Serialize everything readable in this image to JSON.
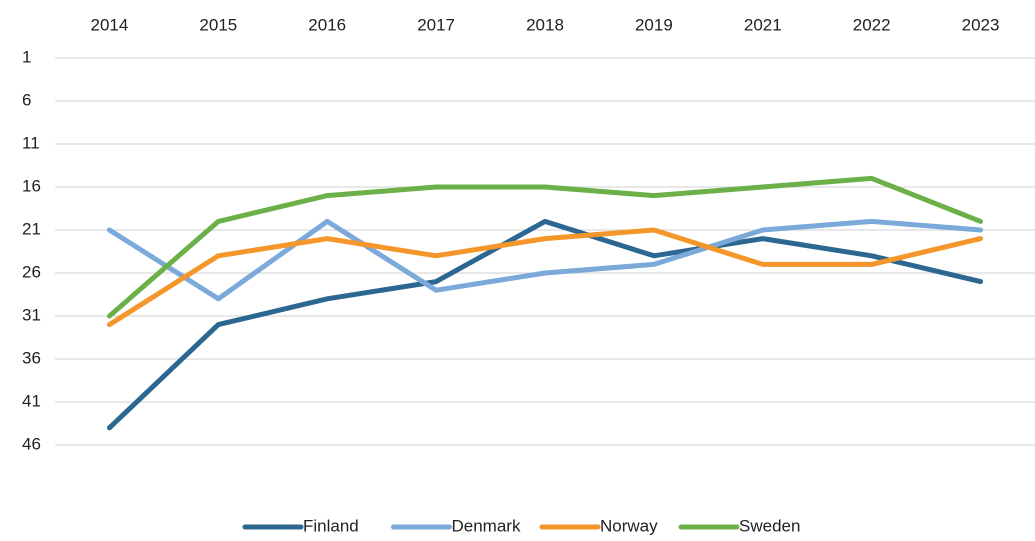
{
  "chart_data": {
    "type": "line",
    "categories": [
      "2014",
      "2015",
      "2016",
      "2017",
      "2018",
      "2019",
      "2021",
      "2022",
      "2023"
    ],
    "series": [
      {
        "name": "Finland",
        "color": "#2b6791",
        "values": [
          44,
          32,
          29,
          27,
          20,
          24,
          22,
          24,
          27
        ]
      },
      {
        "name": "Denmark",
        "color": "#7ba9d9",
        "values": [
          21,
          29,
          20,
          28,
          26,
          25,
          21,
          20,
          21
        ]
      },
      {
        "name": "Norway",
        "color": "#f5962b",
        "values": [
          32,
          24,
          22,
          24,
          22,
          21,
          25,
          25,
          22
        ]
      },
      {
        "name": "Sweden",
        "color": "#6cb04a",
        "values": [
          31,
          20,
          17,
          16,
          16,
          17,
          16,
          15,
          20
        ]
      }
    ],
    "ylim": [
      1,
      46
    ],
    "yticks": [
      1,
      6,
      11,
      16,
      21,
      26,
      31,
      36,
      41,
      46
    ],
    "y_inverted": true,
    "xaxis_position": "top",
    "grid": true,
    "legend": "bottom"
  }
}
